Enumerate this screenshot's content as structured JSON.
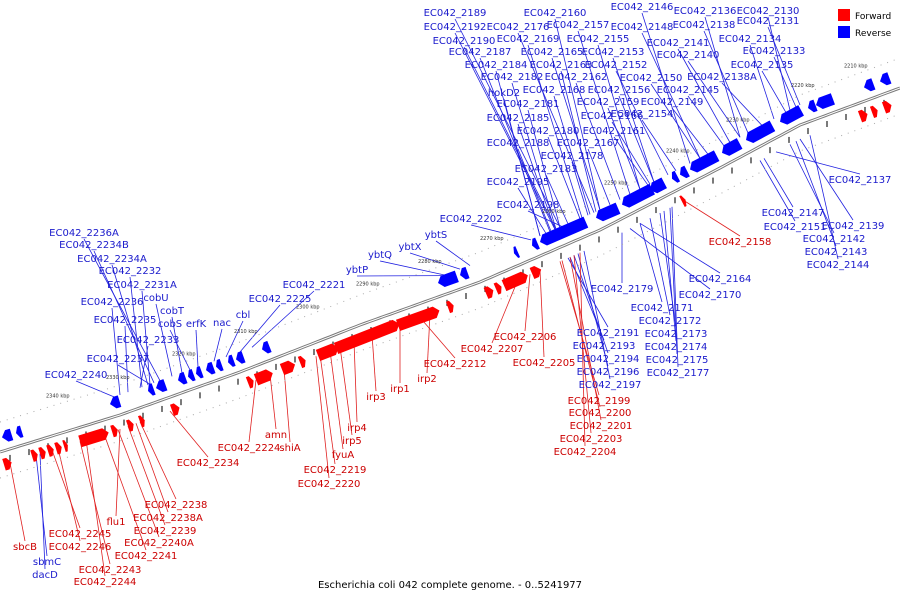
{
  "caption": "Escherichia coli 042 complete genome. - 0..5241977",
  "legend": {
    "forward_label": "Forward",
    "reverse_label": "Reverse",
    "forward_color": "#ff0000",
    "reverse_color": "#0000ff"
  },
  "colors": {
    "forward_label": "#cc0000",
    "reverse_label": "#1a1acc",
    "axis": "#888888"
  },
  "ticks": [
    "2210 kbp",
    "2220 kbp",
    "2230 kbp",
    "2240 kbp",
    "2250 kbp",
    "2260 kbp",
    "2270 kbp",
    "2280 kbp",
    "2290 kbp",
    "2300 kbp",
    "2310 kbp",
    "2320 kbp",
    "2330 kbp",
    "2340 kbp"
  ],
  "reverse_labels_top": [
    "EC042_2189",
    "EC042_2160",
    "EC042_2146",
    "EC042_2136",
    "EC042_2130",
    "EC042_2192",
    "EC042_2176",
    "EC042_2157",
    "EC042_2148",
    "EC042_2138",
    "EC042_2131",
    "EC042_2190",
    "EC042_2169",
    "EC042_2155",
    "EC042_2141",
    "EC042_2134",
    "EC042_2187",
    "EC042_2165",
    "EC042_2153",
    "EC042_2140",
    "EC042_2133",
    "EC042_2184",
    "EC042_2163",
    "EC042_2152",
    "EC042_2135",
    "EC042_2182",
    "EC042_2162",
    "EC042_2150",
    "EC042_2138A",
    "hokD2",
    "EC042_2168",
    "EC042_2156",
    "EC042_2145",
    "EC042_2181",
    "EC042_2159",
    "EC042_2149",
    "EC042_2185",
    "EC042_2166",
    "EC042_2154",
    "EC042_2180",
    "EC042_2161",
    "EC042_2188",
    "EC042_2167",
    "EC042_2178",
    "EC042_2183",
    "EC042_2195",
    "EC042_2198",
    "EC042_2202",
    "ybtS",
    "ybtX",
    "ybtQ",
    "ybtP",
    "EC042_2221",
    "EC042_2225",
    "cbl",
    "nac",
    "erfK",
    "cobS",
    "cobT",
    "cobU",
    "EC042_2236A",
    "EC042_2234B",
    "EC042_2234A",
    "EC042_2232",
    "EC042_2231A",
    "EC042_2236",
    "EC042_2235",
    "EC042_2233",
    "EC042_2237",
    "EC042_2240"
  ],
  "reverse_labels_bottom": [
    "EC042_2137",
    "EC042_2147",
    "EC042_2139",
    "EC042_2151",
    "EC042_2142",
    "EC042_2143",
    "EC042_2144",
    "EC042_2164",
    "EC042_2170",
    "EC042_2179",
    "EC042_2171",
    "EC042_2172",
    "EC042_2173",
    "EC042_2174",
    "EC042_2175",
    "EC042_2177",
    "EC042_2191",
    "EC042_2193",
    "EC042_2194",
    "EC042_2196",
    "EC042_2197",
    "sbmC",
    "dacD"
  ],
  "forward_labels": [
    "EC042_2158",
    "EC042_2206",
    "EC042_2207",
    "EC042_2205",
    "EC042_2199",
    "EC042_2200",
    "EC042_2201",
    "EC042_2203",
    "EC042_2204",
    "EC042_2212",
    "irp2",
    "irp1",
    "irp3",
    "irp4",
    "irp5",
    "fyuA",
    "EC042_2219",
    "EC042_2220",
    "amn",
    "EC042_2224",
    "shiA",
    "EC042_2234",
    "EC042_2238",
    "EC042_2238A",
    "flu1",
    "EC042_2239",
    "EC042_2240A",
    "EC042_2241",
    "EC042_2245",
    "EC042_2246",
    "EC042_2243",
    "EC042_2244",
    "sbcB"
  ]
}
